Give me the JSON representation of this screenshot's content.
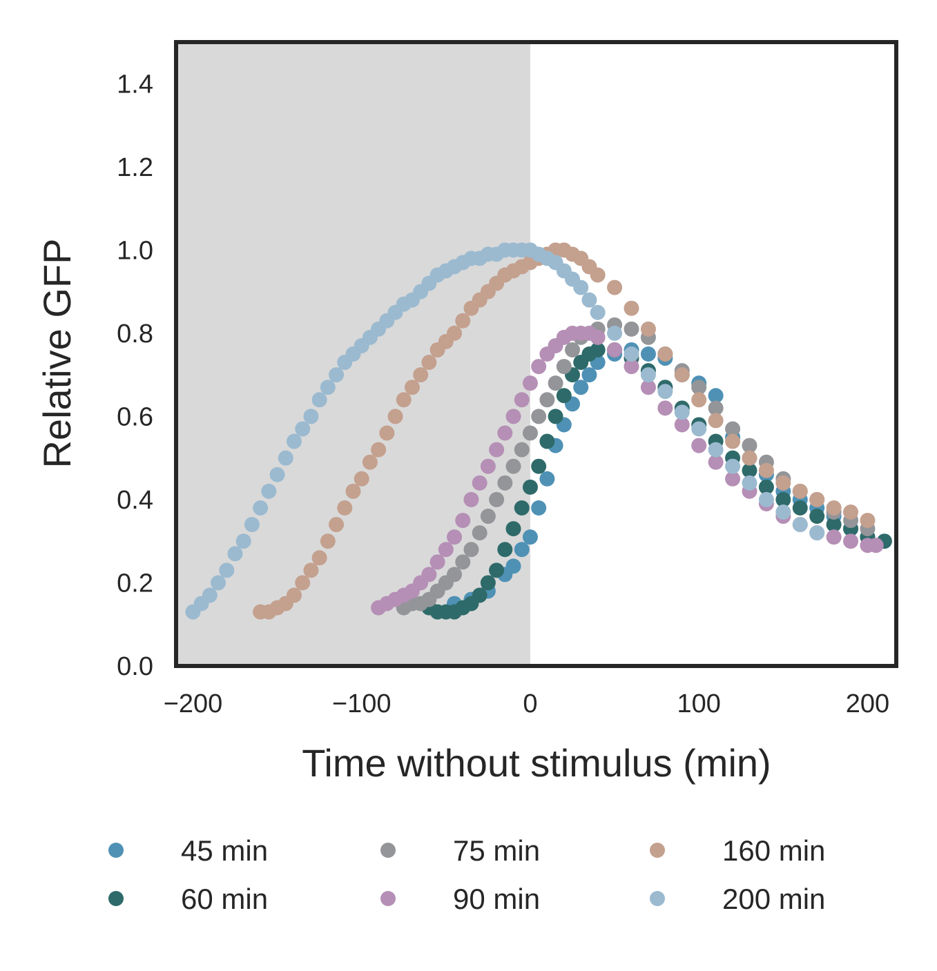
{
  "chart_data": {
    "type": "scatter",
    "title": "",
    "xlabel": "Time without stimulus (min)",
    "ylabel": "Relative GFP",
    "xlim": [
      -210,
      217
    ],
    "ylim": [
      0.0,
      1.5
    ],
    "x_ticks": [
      -200,
      -100,
      0,
      100,
      200
    ],
    "x_tick_labels": [
      "−200",
      "−100",
      "0",
      "100",
      "200"
    ],
    "y_ticks": [
      0.0,
      0.2,
      0.4,
      0.6,
      0.8,
      1.0,
      1.2,
      1.4
    ],
    "y_tick_labels": [
      "0.0",
      "0.2",
      "0.4",
      "0.6",
      "0.8",
      "1.0",
      "1.2",
      "1.4"
    ],
    "shaded_region": {
      "x_from": -210,
      "x_to": 0,
      "color": "#d9d9d9"
    },
    "grid": false,
    "legend_position": "bottom, below plot, 3 columns",
    "series": [
      {
        "name": "45 min",
        "color": "#4e91b5",
        "x": [
          -45,
          -35,
          -25,
          -15,
          -10,
          -5,
          0,
          5,
          10,
          15,
          20,
          25,
          30,
          35,
          40,
          50,
          60,
          70,
          80,
          90,
          100,
          110,
          120,
          130,
          140,
          150,
          160,
          170,
          180,
          190,
          200
        ],
        "y": [
          0.15,
          0.16,
          0.18,
          0.22,
          0.24,
          0.28,
          0.31,
          0.38,
          0.45,
          0.53,
          0.58,
          0.63,
          0.67,
          0.7,
          0.73,
          0.75,
          0.76,
          0.75,
          0.74,
          0.7,
          0.68,
          0.65,
          0.55,
          0.5,
          0.46,
          0.42,
          0.4,
          0.38,
          0.36,
          0.33,
          0.31
        ]
      },
      {
        "name": "60 min",
        "color": "#2f6a6a",
        "x": [
          -60,
          -55,
          -50,
          -45,
          -40,
          -35,
          -30,
          -25,
          -20,
          -15,
          -10,
          -5,
          0,
          5,
          10,
          15,
          20,
          25,
          30,
          35,
          40,
          50,
          60,
          70,
          80,
          90,
          100,
          110,
          120,
          130,
          140,
          150,
          160,
          170,
          180,
          190,
          200,
          210
        ],
        "y": [
          0.14,
          0.13,
          0.13,
          0.13,
          0.14,
          0.15,
          0.17,
          0.2,
          0.23,
          0.28,
          0.33,
          0.38,
          0.43,
          0.48,
          0.54,
          0.6,
          0.65,
          0.7,
          0.73,
          0.75,
          0.76,
          0.76,
          0.74,
          0.71,
          0.67,
          0.62,
          0.58,
          0.54,
          0.5,
          0.47,
          0.43,
          0.4,
          0.38,
          0.36,
          0.34,
          0.33,
          0.31,
          0.3
        ]
      },
      {
        "name": "75 min",
        "color": "#939598",
        "x": [
          -75,
          -70,
          -65,
          -60,
          -55,
          -50,
          -45,
          -40,
          -35,
          -30,
          -25,
          -20,
          -15,
          -10,
          -5,
          0,
          5,
          10,
          15,
          20,
          25,
          30,
          40,
          50,
          60,
          70,
          80,
          90,
          100,
          110,
          120,
          130,
          140,
          150,
          160,
          170,
          180,
          190,
          200
        ],
        "y": [
          0.14,
          0.15,
          0.15,
          0.16,
          0.18,
          0.2,
          0.22,
          0.25,
          0.28,
          0.32,
          0.36,
          0.4,
          0.44,
          0.48,
          0.52,
          0.56,
          0.6,
          0.64,
          0.68,
          0.72,
          0.76,
          0.79,
          0.81,
          0.82,
          0.81,
          0.79,
          0.75,
          0.71,
          0.67,
          0.62,
          0.57,
          0.53,
          0.49,
          0.45,
          0.42,
          0.4,
          0.37,
          0.35,
          0.33
        ]
      },
      {
        "name": "90 min",
        "color": "#b58fb5",
        "x": [
          -90,
          -85,
          -80,
          -75,
          -70,
          -65,
          -60,
          -55,
          -50,
          -45,
          -40,
          -35,
          -30,
          -25,
          -20,
          -15,
          -10,
          -5,
          0,
          5,
          10,
          15,
          20,
          25,
          30,
          35,
          40,
          50,
          60,
          70,
          80,
          90,
          100,
          110,
          120,
          130,
          140,
          150,
          160,
          170,
          180,
          190,
          200,
          205
        ],
        "y": [
          0.14,
          0.15,
          0.16,
          0.17,
          0.18,
          0.2,
          0.22,
          0.25,
          0.28,
          0.31,
          0.35,
          0.4,
          0.44,
          0.48,
          0.52,
          0.56,
          0.6,
          0.64,
          0.68,
          0.72,
          0.75,
          0.77,
          0.79,
          0.8,
          0.8,
          0.8,
          0.79,
          0.76,
          0.72,
          0.67,
          0.62,
          0.58,
          0.53,
          0.49,
          0.45,
          0.42,
          0.39,
          0.36,
          0.34,
          0.32,
          0.31,
          0.3,
          0.29,
          0.29
        ]
      },
      {
        "name": "160 min",
        "color": "#c4a08e",
        "x": [
          -160,
          -155,
          -150,
          -145,
          -140,
          -135,
          -130,
          -125,
          -120,
          -115,
          -110,
          -105,
          -100,
          -95,
          -90,
          -85,
          -80,
          -75,
          -70,
          -65,
          -60,
          -55,
          -50,
          -45,
          -40,
          -35,
          -30,
          -25,
          -20,
          -15,
          -10,
          -5,
          0,
          5,
          10,
          15,
          20,
          25,
          30,
          35,
          40,
          50,
          60,
          70,
          80,
          90,
          100,
          110,
          120,
          130,
          140,
          150,
          160,
          170,
          180,
          190,
          200
        ],
        "y": [
          0.13,
          0.13,
          0.14,
          0.15,
          0.17,
          0.2,
          0.23,
          0.26,
          0.3,
          0.34,
          0.38,
          0.42,
          0.45,
          0.49,
          0.52,
          0.56,
          0.6,
          0.64,
          0.67,
          0.7,
          0.73,
          0.76,
          0.78,
          0.8,
          0.83,
          0.86,
          0.88,
          0.9,
          0.92,
          0.94,
          0.95,
          0.96,
          0.97,
          0.98,
          0.99,
          1.0,
          1.0,
          0.99,
          0.98,
          0.96,
          0.94,
          0.91,
          0.86,
          0.81,
          0.75,
          0.7,
          0.64,
          0.59,
          0.54,
          0.5,
          0.47,
          0.44,
          0.42,
          0.4,
          0.38,
          0.37,
          0.35
        ]
      },
      {
        "name": "200 min",
        "color": "#9bbad0",
        "x": [
          -200,
          -195,
          -190,
          -185,
          -180,
          -175,
          -170,
          -165,
          -160,
          -155,
          -150,
          -145,
          -140,
          -135,
          -130,
          -125,
          -120,
          -115,
          -110,
          -105,
          -100,
          -95,
          -90,
          -85,
          -80,
          -75,
          -70,
          -65,
          -60,
          -55,
          -50,
          -45,
          -40,
          -35,
          -30,
          -25,
          -20,
          -15,
          -10,
          -5,
          0,
          5,
          10,
          15,
          20,
          25,
          30,
          35,
          40,
          50,
          60,
          70,
          80,
          90,
          100,
          110,
          120,
          130,
          140,
          150,
          160,
          170
        ],
        "y": [
          0.13,
          0.15,
          0.17,
          0.2,
          0.23,
          0.27,
          0.3,
          0.34,
          0.38,
          0.42,
          0.46,
          0.5,
          0.54,
          0.57,
          0.6,
          0.64,
          0.67,
          0.7,
          0.73,
          0.75,
          0.77,
          0.79,
          0.81,
          0.83,
          0.85,
          0.87,
          0.88,
          0.9,
          0.92,
          0.94,
          0.95,
          0.96,
          0.97,
          0.98,
          0.98,
          0.99,
          0.99,
          1.0,
          1.0,
          1.0,
          1.0,
          0.99,
          0.98,
          0.97,
          0.95,
          0.93,
          0.91,
          0.88,
          0.85,
          0.8,
          0.75,
          0.7,
          0.66,
          0.61,
          0.57,
          0.52,
          0.48,
          0.44,
          0.4,
          0.37,
          0.34,
          0.32
        ]
      }
    ]
  }
}
